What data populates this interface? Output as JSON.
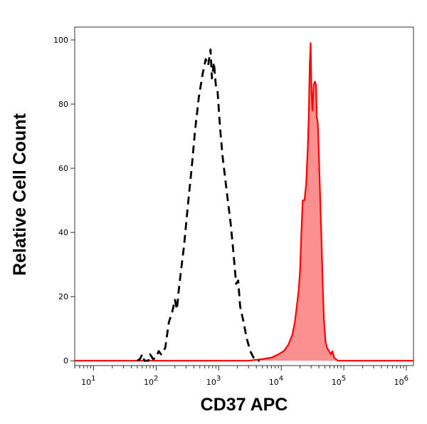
{
  "chart_data": {
    "type": "area",
    "xlabel": "CD37 APC",
    "ylabel": "Relative Cell Count",
    "x_scale": "log",
    "xlim": [
      5,
      1300000
    ],
    "ylim": [
      -1.5,
      104
    ],
    "x_ticks": [
      {
        "value": 10,
        "base": "10",
        "exp": "1"
      },
      {
        "value": 100,
        "base": "10",
        "exp": "2"
      },
      {
        "value": 1000,
        "base": "10",
        "exp": "3"
      },
      {
        "value": 10000,
        "base": "10",
        "exp": "4"
      },
      {
        "value": 100000,
        "base": "10",
        "exp": "5"
      },
      {
        "value": 1000000,
        "base": "10",
        "exp": "6"
      }
    ],
    "y_ticks": [
      0,
      20,
      40,
      60,
      80,
      100
    ],
    "grid": false,
    "legend": "none",
    "series": [
      {
        "style": "dashed",
        "color": "#000000",
        "fill": "none",
        "points": [
          [
            50,
            0
          ],
          [
            55,
            0.5
          ],
          [
            60,
            2
          ],
          [
            65,
            0
          ],
          [
            75,
            0
          ],
          [
            80,
            2
          ],
          [
            90,
            0.5
          ],
          [
            100,
            1
          ],
          [
            110,
            3
          ],
          [
            120,
            2
          ],
          [
            140,
            4
          ],
          [
            160,
            12
          ],
          [
            180,
            15
          ],
          [
            200,
            19
          ],
          [
            215,
            16
          ],
          [
            230,
            22
          ],
          [
            250,
            28
          ],
          [
            280,
            36
          ],
          [
            320,
            48
          ],
          [
            370,
            60
          ],
          [
            420,
            72
          ],
          [
            480,
            82
          ],
          [
            550,
            89
          ],
          [
            620,
            94
          ],
          [
            680,
            92
          ],
          [
            740,
            97
          ],
          [
            780,
            88
          ],
          [
            840,
            93
          ],
          [
            900,
            86
          ],
          [
            960,
            84
          ],
          [
            1050,
            73
          ],
          [
            1150,
            64
          ],
          [
            1250,
            58
          ],
          [
            1400,
            50
          ],
          [
            1550,
            43
          ],
          [
            1700,
            35
          ],
          [
            1900,
            24
          ],
          [
            2050,
            25
          ],
          [
            2200,
            17
          ],
          [
            2500,
            12
          ],
          [
            2800,
            7
          ],
          [
            3200,
            3
          ],
          [
            3600,
            1
          ],
          [
            4000,
            0
          ],
          [
            4500,
            0
          ]
        ]
      },
      {
        "style": "solid",
        "color": "#ff0000",
        "fill": "#fa9090",
        "points": [
          [
            5,
            0
          ],
          [
            3000,
            0
          ],
          [
            5000,
            0.5
          ],
          [
            7000,
            1
          ],
          [
            9000,
            2
          ],
          [
            11000,
            3
          ],
          [
            13000,
            5
          ],
          [
            15000,
            8
          ],
          [
            16500,
            12
          ],
          [
            18000,
            18
          ],
          [
            19000,
            22
          ],
          [
            20000,
            28
          ],
          [
            21000,
            40
          ],
          [
            22000,
            50
          ],
          [
            23500,
            50
          ],
          [
            25000,
            55
          ],
          [
            26500,
            66
          ],
          [
            27500,
            76
          ],
          [
            28500,
            92
          ],
          [
            29500,
            99
          ],
          [
            30500,
            84
          ],
          [
            31500,
            78
          ],
          [
            33000,
            86
          ],
          [
            34500,
            87
          ],
          [
            36000,
            86
          ],
          [
            37000,
            76
          ],
          [
            38500,
            74
          ],
          [
            40000,
            64
          ],
          [
            42000,
            50
          ],
          [
            44000,
            38
          ],
          [
            46000,
            24
          ],
          [
            48000,
            13
          ],
          [
            51000,
            6
          ],
          [
            54000,
            4
          ],
          [
            58000,
            3
          ],
          [
            62000,
            2
          ],
          [
            66000,
            3
          ],
          [
            70000,
            1
          ],
          [
            80000,
            0
          ],
          [
            1300000,
            0
          ]
        ]
      }
    ]
  }
}
